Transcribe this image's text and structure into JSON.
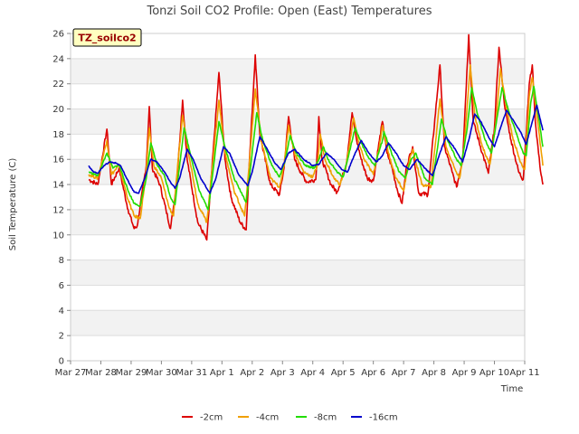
{
  "chart_data": {
    "type": "line",
    "title": "Tonzi Soil CO2 Profile: Open (East) Temperatures",
    "xlabel": "Time",
    "ylabel": "Soil Temperature (C)",
    "badge": "TZ_soilco2",
    "xlim": [
      0,
      15
    ],
    "ylim": [
      0,
      26
    ],
    "x_ticks": [
      {
        "x": 0,
        "label": "Mar 27"
      },
      {
        "x": 1,
        "label": "Mar 28"
      },
      {
        "x": 2,
        "label": "Mar 29"
      },
      {
        "x": 3,
        "label": "Mar 30"
      },
      {
        "x": 4,
        "label": "Mar 31"
      },
      {
        "x": 5,
        "label": "Apr 1"
      },
      {
        "x": 6,
        "label": "Apr 2"
      },
      {
        "x": 7,
        "label": "Apr 3"
      },
      {
        "x": 8,
        "label": "Apr 4"
      },
      {
        "x": 9,
        "label": "Apr 5"
      },
      {
        "x": 10,
        "label": "Apr 6"
      },
      {
        "x": 11,
        "label": "Apr 7"
      },
      {
        "x": 12,
        "label": "Apr 8"
      },
      {
        "x": 13,
        "label": "Apr 9"
      },
      {
        "x": 14,
        "label": "Apr 10"
      },
      {
        "x": 15,
        "label": "Apr 11"
      }
    ],
    "y_ticks": [
      0,
      2,
      4,
      6,
      8,
      10,
      12,
      14,
      16,
      18,
      20,
      22,
      24,
      26
    ],
    "grid": true,
    "legend_position": "bottom",
    "series": [
      {
        "name": "-2cm",
        "color": "#dd0000",
        "points": [
          [
            0.6,
            14.4
          ],
          [
            0.9,
            14.0
          ],
          [
            1.2,
            18.4
          ],
          [
            1.35,
            14.0
          ],
          [
            1.6,
            15.3
          ],
          [
            1.9,
            12.0
          ],
          [
            2.1,
            10.5
          ],
          [
            2.2,
            10.7
          ],
          [
            2.5,
            15.5
          ],
          [
            2.6,
            20.2
          ],
          [
            2.7,
            15.3
          ],
          [
            2.95,
            14.0
          ],
          [
            3.15,
            12.0
          ],
          [
            3.3,
            10.5
          ],
          [
            3.5,
            14.0
          ],
          [
            3.7,
            20.7
          ],
          [
            3.85,
            16.0
          ],
          [
            4.2,
            11.0
          ],
          [
            4.5,
            9.6
          ],
          [
            4.9,
            22.9
          ],
          [
            5.1,
            16.0
          ],
          [
            5.3,
            13.0
          ],
          [
            5.6,
            11.0
          ],
          [
            5.8,
            10.4
          ],
          [
            5.9,
            15.5
          ],
          [
            6.1,
            24.3
          ],
          [
            6.25,
            18.0
          ],
          [
            6.6,
            14.0
          ],
          [
            6.9,
            13.2
          ],
          [
            7.05,
            15.3
          ],
          [
            7.2,
            19.4
          ],
          [
            7.4,
            16.0
          ],
          [
            7.6,
            15.0
          ],
          [
            7.8,
            14.2
          ],
          [
            8.1,
            14.4
          ],
          [
            8.2,
            19.4
          ],
          [
            8.3,
            16.0
          ],
          [
            8.6,
            14.0
          ],
          [
            8.8,
            13.4
          ],
          [
            9.1,
            15.5
          ],
          [
            9.3,
            19.7
          ],
          [
            9.45,
            17.5
          ],
          [
            9.6,
            16.0
          ],
          [
            9.8,
            14.5
          ],
          [
            10.0,
            14.3
          ],
          [
            10.2,
            17.5
          ],
          [
            10.3,
            19.0
          ],
          [
            10.45,
            16.5
          ],
          [
            10.6,
            15.5
          ],
          [
            10.8,
            13.5
          ],
          [
            10.95,
            12.5
          ],
          [
            11.1,
            15.5
          ],
          [
            11.3,
            17.0
          ],
          [
            11.5,
            13.3
          ],
          [
            11.8,
            13.2
          ],
          [
            12.2,
            23.5
          ],
          [
            12.35,
            17.0
          ],
          [
            12.6,
            15.0
          ],
          [
            12.75,
            13.8
          ],
          [
            12.95,
            16.0
          ],
          [
            13.15,
            25.9
          ],
          [
            13.3,
            19.0
          ],
          [
            13.6,
            16.5
          ],
          [
            13.8,
            14.9
          ],
          [
            14.0,
            18.5
          ],
          [
            14.15,
            24.9
          ],
          [
            14.35,
            20.0
          ],
          [
            14.55,
            17.5
          ],
          [
            14.8,
            15.0
          ],
          [
            14.95,
            14.4
          ],
          [
            15.15,
            22.0
          ],
          [
            15.25,
            23.5
          ],
          [
            15.35,
            19.0
          ],
          [
            15.5,
            15.5
          ],
          [
            15.6,
            14.0
          ]
        ]
      },
      {
        "name": "-4cm",
        "color": "#f0a000",
        "points": [
          [
            0.6,
            14.8
          ],
          [
            0.9,
            14.5
          ],
          [
            1.2,
            17.5
          ],
          [
            1.35,
            14.8
          ],
          [
            1.6,
            15.5
          ],
          [
            1.9,
            12.8
          ],
          [
            2.1,
            11.5
          ],
          [
            2.3,
            11.3
          ],
          [
            2.5,
            15.0
          ],
          [
            2.6,
            18.5
          ],
          [
            2.75,
            15.5
          ],
          [
            3.0,
            14.5
          ],
          [
            3.25,
            12.2
          ],
          [
            3.4,
            11.5
          ],
          [
            3.5,
            14.5
          ],
          [
            3.7,
            19.5
          ],
          [
            3.9,
            16.5
          ],
          [
            4.2,
            12.5
          ],
          [
            4.5,
            11.0
          ],
          [
            4.9,
            20.7
          ],
          [
            5.1,
            16.5
          ],
          [
            5.4,
            13.5
          ],
          [
            5.75,
            11.5
          ],
          [
            5.9,
            15.5
          ],
          [
            6.1,
            21.6
          ],
          [
            6.3,
            17.5
          ],
          [
            6.6,
            14.5
          ],
          [
            6.9,
            13.8
          ],
          [
            7.05,
            15.5
          ],
          [
            7.2,
            18.7
          ],
          [
            7.4,
            16.5
          ],
          [
            7.7,
            15.0
          ],
          [
            8.0,
            14.6
          ],
          [
            8.15,
            15.5
          ],
          [
            8.25,
            18.0
          ],
          [
            8.4,
            16.0
          ],
          [
            8.7,
            14.5
          ],
          [
            8.9,
            14.0
          ],
          [
            9.1,
            15.5
          ],
          [
            9.35,
            19.3
          ],
          [
            9.5,
            17.5
          ],
          [
            9.7,
            16.0
          ],
          [
            10.0,
            14.8
          ],
          [
            10.2,
            17.0
          ],
          [
            10.3,
            18.7
          ],
          [
            10.5,
            16.5
          ],
          [
            10.75,
            14.5
          ],
          [
            11.0,
            13.5
          ],
          [
            11.15,
            15.5
          ],
          [
            11.3,
            16.8
          ],
          [
            11.6,
            14.0
          ],
          [
            11.9,
            13.8
          ],
          [
            12.2,
            20.8
          ],
          [
            12.4,
            17.0
          ],
          [
            12.7,
            15.2
          ],
          [
            12.85,
            14.5
          ],
          [
            13.0,
            17.0
          ],
          [
            13.2,
            23.5
          ],
          [
            13.35,
            19.5
          ],
          [
            13.6,
            17.0
          ],
          [
            13.85,
            15.6
          ],
          [
            14.05,
            19.0
          ],
          [
            14.2,
            23.2
          ],
          [
            14.4,
            20.0
          ],
          [
            14.6,
            17.8
          ],
          [
            14.85,
            15.8
          ],
          [
            15.0,
            15.2
          ],
          [
            15.15,
            21.0
          ],
          [
            15.25,
            22.5
          ],
          [
            15.4,
            19.5
          ],
          [
            15.55,
            16.5
          ],
          [
            15.6,
            15.5
          ]
        ]
      },
      {
        "name": "-8cm",
        "color": "#22dd00",
        "points": [
          [
            0.6,
            15.0
          ],
          [
            0.9,
            14.7
          ],
          [
            1.2,
            16.5
          ],
          [
            1.4,
            15.3
          ],
          [
            1.6,
            15.6
          ],
          [
            1.9,
            13.5
          ],
          [
            2.1,
            12.5
          ],
          [
            2.3,
            12.3
          ],
          [
            2.5,
            14.5
          ],
          [
            2.65,
            17.3
          ],
          [
            2.85,
            15.6
          ],
          [
            3.1,
            14.7
          ],
          [
            3.3,
            13.0
          ],
          [
            3.45,
            12.4
          ],
          [
            3.55,
            14.5
          ],
          [
            3.75,
            18.5
          ],
          [
            3.95,
            16.5
          ],
          [
            4.25,
            13.5
          ],
          [
            4.55,
            12.0
          ],
          [
            4.9,
            19.0
          ],
          [
            5.1,
            17.0
          ],
          [
            5.4,
            14.5
          ],
          [
            5.8,
            12.6
          ],
          [
            5.95,
            15.5
          ],
          [
            6.15,
            19.7
          ],
          [
            6.35,
            17.5
          ],
          [
            6.65,
            15.5
          ],
          [
            6.9,
            14.6
          ],
          [
            7.1,
            16.0
          ],
          [
            7.25,
            17.9
          ],
          [
            7.45,
            16.5
          ],
          [
            7.75,
            15.5
          ],
          [
            8.05,
            15.3
          ],
          [
            8.2,
            16.0
          ],
          [
            8.35,
            17.0
          ],
          [
            8.5,
            16.0
          ],
          [
            8.8,
            15.0
          ],
          [
            9.0,
            14.6
          ],
          [
            9.15,
            16.0
          ],
          [
            9.4,
            18.5
          ],
          [
            9.6,
            17.3
          ],
          [
            9.8,
            16.3
          ],
          [
            10.05,
            15.5
          ],
          [
            10.3,
            17.5
          ],
          [
            10.35,
            18.2
          ],
          [
            10.6,
            16.5
          ],
          [
            10.85,
            15.0
          ],
          [
            11.05,
            14.5
          ],
          [
            11.25,
            16.0
          ],
          [
            11.4,
            16.5
          ],
          [
            11.7,
            14.5
          ],
          [
            11.95,
            14.0
          ],
          [
            12.25,
            19.2
          ],
          [
            12.45,
            17.5
          ],
          [
            12.75,
            16.0
          ],
          [
            12.9,
            15.5
          ],
          [
            13.1,
            18.5
          ],
          [
            13.25,
            21.7
          ],
          [
            13.45,
            19.5
          ],
          [
            13.7,
            17.5
          ],
          [
            13.9,
            16.5
          ],
          [
            14.1,
            19.5
          ],
          [
            14.25,
            21.7
          ],
          [
            14.45,
            20.0
          ],
          [
            14.7,
            18.2
          ],
          [
            14.95,
            16.5
          ],
          [
            15.05,
            16.3
          ],
          [
            15.2,
            20.5
          ],
          [
            15.3,
            21.8
          ],
          [
            15.45,
            19.5
          ],
          [
            15.6,
            17.0
          ]
        ]
      },
      {
        "name": "-16cm",
        "color": "#0000cc",
        "points": [
          [
            0.6,
            15.5
          ],
          [
            0.75,
            15.0
          ],
          [
            0.9,
            14.9
          ],
          [
            1.1,
            15.5
          ],
          [
            1.3,
            15.8
          ],
          [
            1.5,
            15.7
          ],
          [
            1.65,
            15.5
          ],
          [
            1.85,
            14.5
          ],
          [
            2.1,
            13.4
          ],
          [
            2.25,
            13.3
          ],
          [
            2.45,
            14.5
          ],
          [
            2.65,
            16.0
          ],
          [
            2.85,
            15.8
          ],
          [
            3.1,
            15.0
          ],
          [
            3.3,
            14.2
          ],
          [
            3.45,
            13.7
          ],
          [
            3.6,
            14.5
          ],
          [
            3.85,
            16.8
          ],
          [
            4.05,
            16.0
          ],
          [
            4.3,
            14.5
          ],
          [
            4.6,
            13.3
          ],
          [
            4.8,
            14.5
          ],
          [
            5.05,
            17.0
          ],
          [
            5.25,
            16.5
          ],
          [
            5.55,
            14.8
          ],
          [
            5.85,
            13.9
          ],
          [
            6.0,
            15.0
          ],
          [
            6.25,
            17.8
          ],
          [
            6.45,
            17.0
          ],
          [
            6.75,
            15.7
          ],
          [
            6.95,
            15.2
          ],
          [
            7.2,
            16.5
          ],
          [
            7.4,
            16.8
          ],
          [
            7.7,
            16.0
          ],
          [
            8.0,
            15.5
          ],
          [
            8.2,
            15.6
          ],
          [
            8.45,
            16.5
          ],
          [
            8.7,
            16.0
          ],
          [
            8.95,
            15.2
          ],
          [
            9.15,
            15.0
          ],
          [
            9.4,
            16.5
          ],
          [
            9.6,
            17.5
          ],
          [
            9.85,
            16.5
          ],
          [
            10.1,
            15.8
          ],
          [
            10.3,
            16.3
          ],
          [
            10.5,
            17.3
          ],
          [
            10.75,
            16.5
          ],
          [
            11.0,
            15.5
          ],
          [
            11.2,
            15.2
          ],
          [
            11.45,
            16.0
          ],
          [
            11.7,
            15.3
          ],
          [
            11.95,
            14.7
          ],
          [
            12.2,
            16.5
          ],
          [
            12.4,
            17.8
          ],
          [
            12.65,
            17.0
          ],
          [
            12.95,
            15.8
          ],
          [
            13.15,
            17.5
          ],
          [
            13.35,
            19.6
          ],
          [
            13.55,
            19.0
          ],
          [
            13.8,
            17.8
          ],
          [
            14.0,
            17.0
          ],
          [
            14.2,
            18.5
          ],
          [
            14.4,
            19.9
          ],
          [
            14.65,
            19.0
          ],
          [
            14.9,
            18.0
          ],
          [
            15.05,
            17.2
          ],
          [
            15.25,
            19.0
          ],
          [
            15.4,
            20.3
          ],
          [
            15.6,
            18.3
          ]
        ]
      }
    ]
  }
}
